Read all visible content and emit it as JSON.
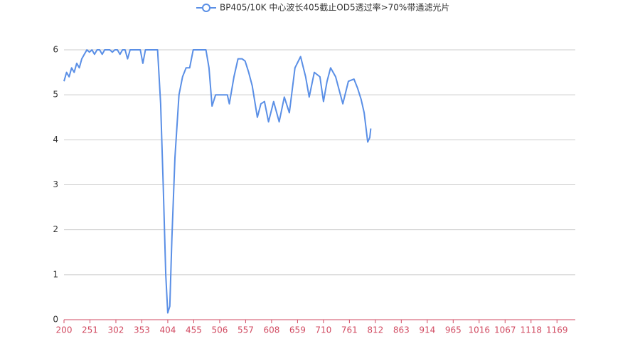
{
  "chart_data": {
    "type": "line",
    "x": [
      200,
      205,
      210,
      215,
      220,
      225,
      230,
      235,
      240,
      245,
      250,
      255,
      260,
      265,
      270,
      275,
      280,
      285,
      290,
      295,
      300,
      305,
      310,
      315,
      320,
      325,
      330,
      335,
      340,
      345,
      350,
      355,
      360,
      365,
      370,
      375,
      380,
      384,
      390,
      395,
      400,
      404,
      408,
      412,
      418,
      426,
      433,
      440,
      447,
      454,
      465,
      479,
      485,
      491,
      498,
      510,
      521,
      525,
      534,
      542,
      550,
      556,
      563,
      570,
      580,
      587,
      594,
      602,
      612,
      623,
      633,
      643,
      654,
      665,
      675,
      682,
      692,
      703,
      710,
      717,
      724,
      734,
      748,
      759,
      770,
      777,
      784,
      790,
      797,
      801,
      803
    ],
    "series": [
      {
        "name": "BP405/10K 中心波长405截止OD5透过率>70%带通滤光片",
        "color": "#5a8fe6",
        "values": [
          5.3,
          5.5,
          5.4,
          5.6,
          5.5,
          5.7,
          5.6,
          5.8,
          5.9,
          6,
          5.95,
          6,
          5.9,
          6,
          6,
          5.9,
          6,
          6,
          6,
          5.95,
          6,
          6,
          5.9,
          6,
          6,
          5.8,
          6,
          6,
          6,
          6,
          6,
          5.7,
          6,
          6,
          6,
          6,
          6,
          6,
          4.8,
          3.0,
          1.0,
          0.15,
          0.3,
          1.8,
          3.6,
          5.0,
          5.4,
          5.6,
          5.6,
          6,
          6,
          6,
          5.6,
          4.75,
          5.0,
          5.0,
          5.0,
          4.8,
          5.4,
          5.8,
          5.8,
          5.75,
          5.5,
          5.2,
          4.5,
          4.8,
          4.85,
          4.4,
          4.85,
          4.4,
          4.95,
          4.6,
          5.6,
          5.85,
          5.4,
          4.95,
          5.5,
          5.4,
          4.85,
          5.3,
          5.6,
          5.4,
          4.8,
          5.3,
          5.35,
          5.15,
          4.9,
          4.6,
          3.95,
          4.05,
          4.25
        ]
      }
    ],
    "xlim": [
      200,
      1205
    ],
    "xticks": [
      200,
      251,
      302,
      353,
      404,
      455,
      506,
      557,
      608,
      659,
      710,
      761,
      812,
      863,
      914,
      965,
      1016,
      1067,
      1118,
      1169
    ],
    "ylim": [
      0,
      6
    ],
    "yticks": [
      0,
      1,
      2,
      3,
      4,
      5,
      6
    ],
    "grid": true
  }
}
